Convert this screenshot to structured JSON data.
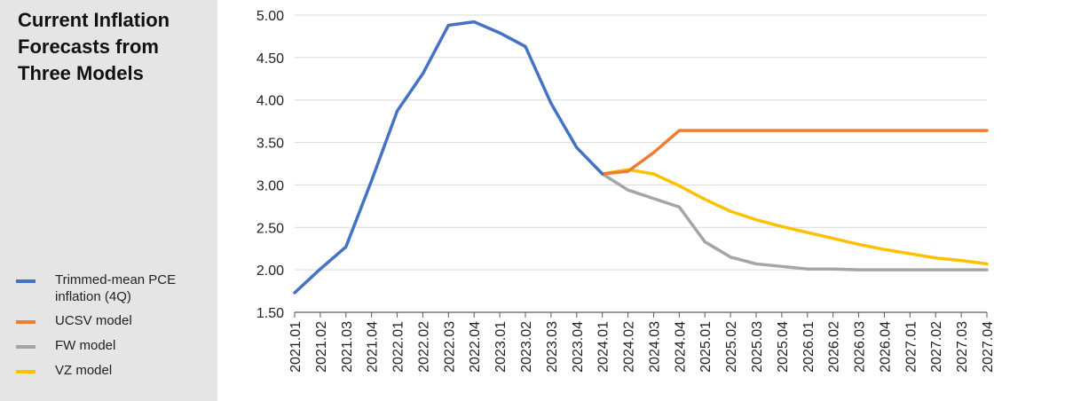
{
  "title": "Current Inflation Forecasts from Three Models",
  "colors": {
    "trimmed": "#4472c4",
    "ucsv": "#ed7d31",
    "fw": "#a5a5a5",
    "vz": "#ffc000",
    "grid": "#d9d9d9",
    "sidebar": "#e5e5e5"
  },
  "chart_data": {
    "type": "line",
    "title": "Current Inflation Forecasts from Three Models",
    "xlabel": "",
    "ylabel": "",
    "ylim": [
      1.5,
      5.0
    ],
    "yticks": [
      "5.00",
      "4.50",
      "4.00",
      "3.50",
      "3.00",
      "2.50",
      "2.00",
      "1.50"
    ],
    "grid": true,
    "legend_position": "left",
    "categories": [
      "2021.01",
      "2021.02",
      "2021.03",
      "2021.04",
      "2022.01",
      "2022.02",
      "2022.03",
      "2022.04",
      "2023.01",
      "2023.02",
      "2023.03",
      "2023.04",
      "2024.01",
      "2024.02",
      "2024.03",
      "2024.04",
      "2025.01",
      "2025.02",
      "2025.03",
      "2025.04",
      "2026.01",
      "2026.02",
      "2026.03",
      "2026.04",
      "2027.01",
      "2027.02",
      "2027.03",
      "2027.04"
    ],
    "series": [
      {
        "name": "Trimmed-mean PCE inflation (4Q)",
        "color_key": "trimmed",
        "values": [
          1.73,
          2.01,
          2.27,
          3.05,
          3.87,
          4.31,
          4.88,
          4.92,
          4.79,
          4.63,
          3.96,
          3.44,
          3.13,
          null,
          null,
          null,
          null,
          null,
          null,
          null,
          null,
          null,
          null,
          null,
          null,
          null,
          null,
          null
        ]
      },
      {
        "name": "UCSV model",
        "color_key": "ucsv",
        "values": [
          null,
          null,
          null,
          null,
          null,
          null,
          null,
          null,
          null,
          null,
          null,
          null,
          3.13,
          3.16,
          3.38,
          3.64,
          3.64,
          3.64,
          3.64,
          3.64,
          3.64,
          3.64,
          3.64,
          3.64,
          3.64,
          3.64,
          3.64,
          3.64
        ]
      },
      {
        "name": "FW model",
        "color_key": "fw",
        "values": [
          null,
          null,
          null,
          null,
          null,
          null,
          null,
          null,
          null,
          null,
          null,
          null,
          3.13,
          2.94,
          2.84,
          2.74,
          2.33,
          2.15,
          2.07,
          2.04,
          2.01,
          2.01,
          2.0,
          2.0,
          2.0,
          2.0,
          2.0,
          2.0
        ]
      },
      {
        "name": "VZ model",
        "color_key": "vz",
        "values": [
          null,
          null,
          null,
          null,
          null,
          null,
          null,
          null,
          null,
          null,
          null,
          null,
          3.13,
          3.18,
          3.13,
          2.99,
          2.83,
          2.69,
          2.59,
          2.51,
          2.44,
          2.37,
          2.3,
          2.24,
          2.19,
          2.14,
          2.11,
          2.07
        ]
      }
    ]
  }
}
